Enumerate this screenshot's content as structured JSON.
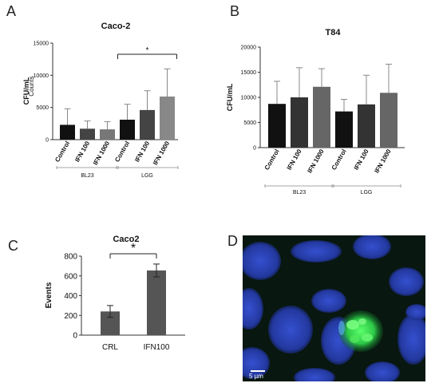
{
  "panels": {
    "A": "A",
    "B": "B",
    "C": "C",
    "D": "D"
  },
  "chart_data": [
    {
      "id": "A",
      "type": "bar",
      "title": "Caco-2",
      "ylabel": "CFU/mL",
      "ylabel_overlap": "Counts",
      "ylim": [
        0,
        15000
      ],
      "yticks": [
        0,
        5000,
        10000,
        15000
      ],
      "ytick_labels": [
        "0",
        "5000",
        "10000",
        "15000"
      ],
      "categories": [
        "Control",
        "IFN 100",
        "IFN 1000",
        "Control",
        "IFN 100",
        "IFN 1000"
      ],
      "values": [
        2300,
        1700,
        1600,
        3100,
        4600,
        6700
      ],
      "errors": [
        2500,
        1200,
        1200,
        2400,
        3000,
        4300
      ],
      "colors": [
        "#111111",
        "#444444",
        "#777777",
        "#111111",
        "#444444",
        "#888888"
      ],
      "groups": [
        {
          "label": "BL23",
          "start": 0,
          "end": 2
        },
        {
          "label": "LGG",
          "start": 3,
          "end": 5
        }
      ],
      "significance": {
        "from": 3,
        "to": 5,
        "label": "*"
      }
    },
    {
      "id": "B",
      "type": "bar",
      "title": "T84",
      "ylabel": "CFU/mL",
      "ylim": [
        0,
        20000
      ],
      "yticks": [
        0,
        5000,
        10000,
        15000,
        20000
      ],
      "ytick_labels": [
        "0",
        "5000",
        "10000",
        "15000",
        "20000"
      ],
      "categories": [
        "Control",
        "IFN 100",
        "IFN 1000",
        "Control",
        "IFN 100",
        "IFN 1000"
      ],
      "values": [
        8700,
        10000,
        12100,
        7200,
        8600,
        10900
      ],
      "errors": [
        4500,
        5900,
        3600,
        2400,
        5800,
        5700
      ],
      "colors": [
        "#111111",
        "#333333",
        "#666666",
        "#111111",
        "#333333",
        "#666666"
      ],
      "groups": [
        {
          "label": "BL23",
          "start": 0,
          "end": 2
        },
        {
          "label": "LGG",
          "start": 3,
          "end": 5
        }
      ]
    },
    {
      "id": "C",
      "type": "bar",
      "title": "Caco2",
      "ylabel": "Events",
      "ylim": [
        0,
        800
      ],
      "yticks": [
        0,
        200,
        400,
        600,
        800
      ],
      "ytick_labels": [
        "0",
        "200",
        "400",
        "600",
        "800"
      ],
      "categories": [
        "CRL",
        "IFN100"
      ],
      "values": [
        240,
        655
      ],
      "errors": [
        60,
        65
      ],
      "colors": [
        "#555555",
        "#555555"
      ],
      "significance": {
        "from": 0,
        "to": 1,
        "label": "*"
      }
    }
  ],
  "micrograph": {
    "scale_label": "5 µm",
    "background": "#071a12",
    "nucleus_color": "#2b43b8",
    "signal_color": "#2fd04a"
  }
}
